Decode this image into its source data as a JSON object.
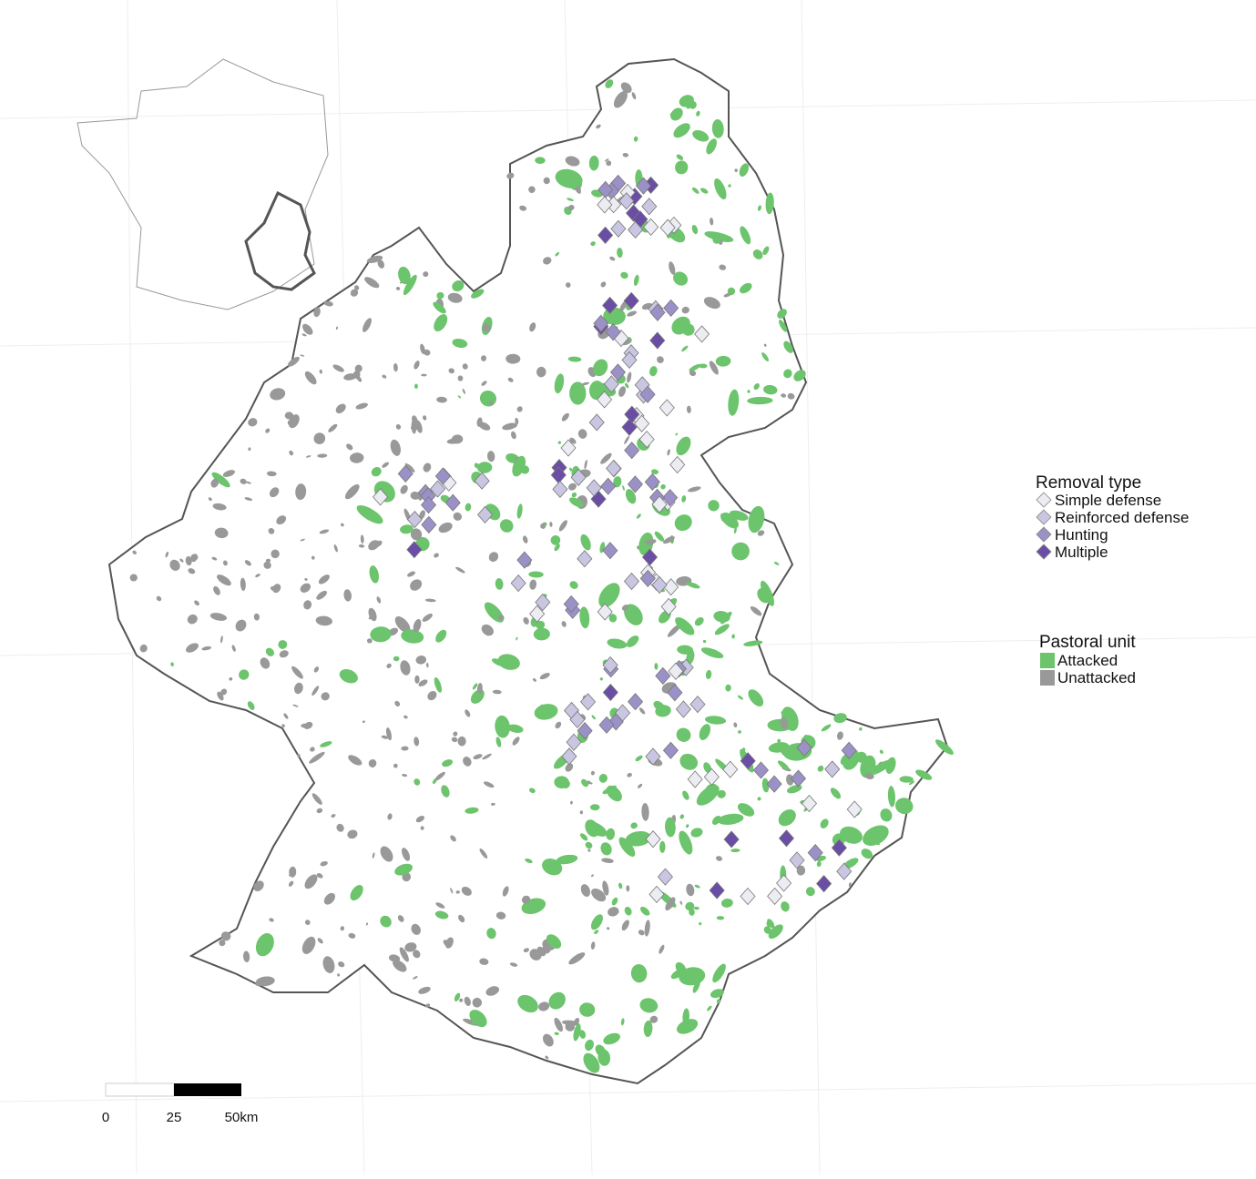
{
  "legend": {
    "removal_type": {
      "title": "Removal type",
      "items": [
        {
          "label": "Simple defense",
          "color": "#ececf3"
        },
        {
          "label": "Reinforced defense",
          "color": "#c9c6e2"
        },
        {
          "label": "Hunting",
          "color": "#9b91c7"
        },
        {
          "label": "Multiple",
          "color": "#6a4ea6"
        }
      ]
    },
    "pastoral_unit": {
      "title": "Pastoral unit",
      "items": [
        {
          "label": "Attacked",
          "color": "#6cc46c"
        },
        {
          "label": "Unattacked",
          "color": "#999999"
        }
      ]
    }
  },
  "scale_bar": {
    "labels": [
      "0",
      "25",
      "50km"
    ]
  }
}
